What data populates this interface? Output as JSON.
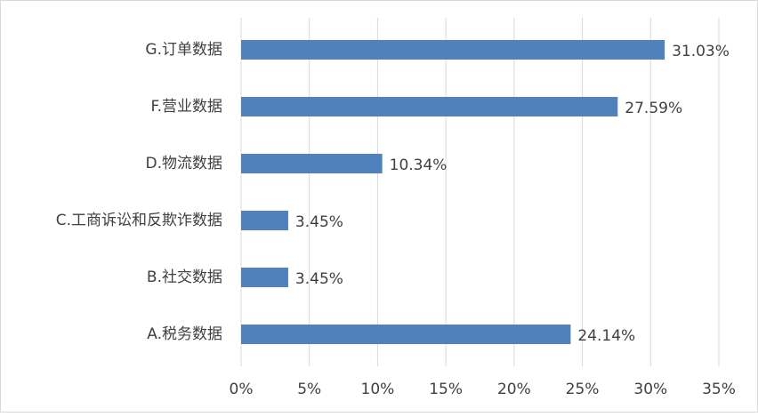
{
  "chart_data": {
    "type": "bar",
    "categories": [
      "G.订单数据",
      "F.营业数据",
      "D.物流数据",
      "C.工商诉讼和反欺诈数据",
      "B.社交数据",
      "A.税务数据"
    ],
    "values": [
      31.03,
      27.59,
      10.34,
      3.45,
      3.45,
      24.14
    ],
    "value_labels": [
      "31.03%",
      "27.59%",
      "10.34%",
      "3.45%",
      "3.45%",
      "24.14%"
    ],
    "color": "#4f81bd",
    "xlim": [
      0,
      35
    ],
    "xticks": [
      {
        "value": 0,
        "label": "0%"
      },
      {
        "value": 5,
        "label": "5%"
      },
      {
        "value": 10,
        "label": "10%"
      },
      {
        "value": 15,
        "label": "15%"
      },
      {
        "value": 20,
        "label": "20%"
      },
      {
        "value": 25,
        "label": "25%"
      },
      {
        "value": 30,
        "label": "30%"
      },
      {
        "value": 35,
        "label": "35%"
      }
    ],
    "grid": true
  }
}
